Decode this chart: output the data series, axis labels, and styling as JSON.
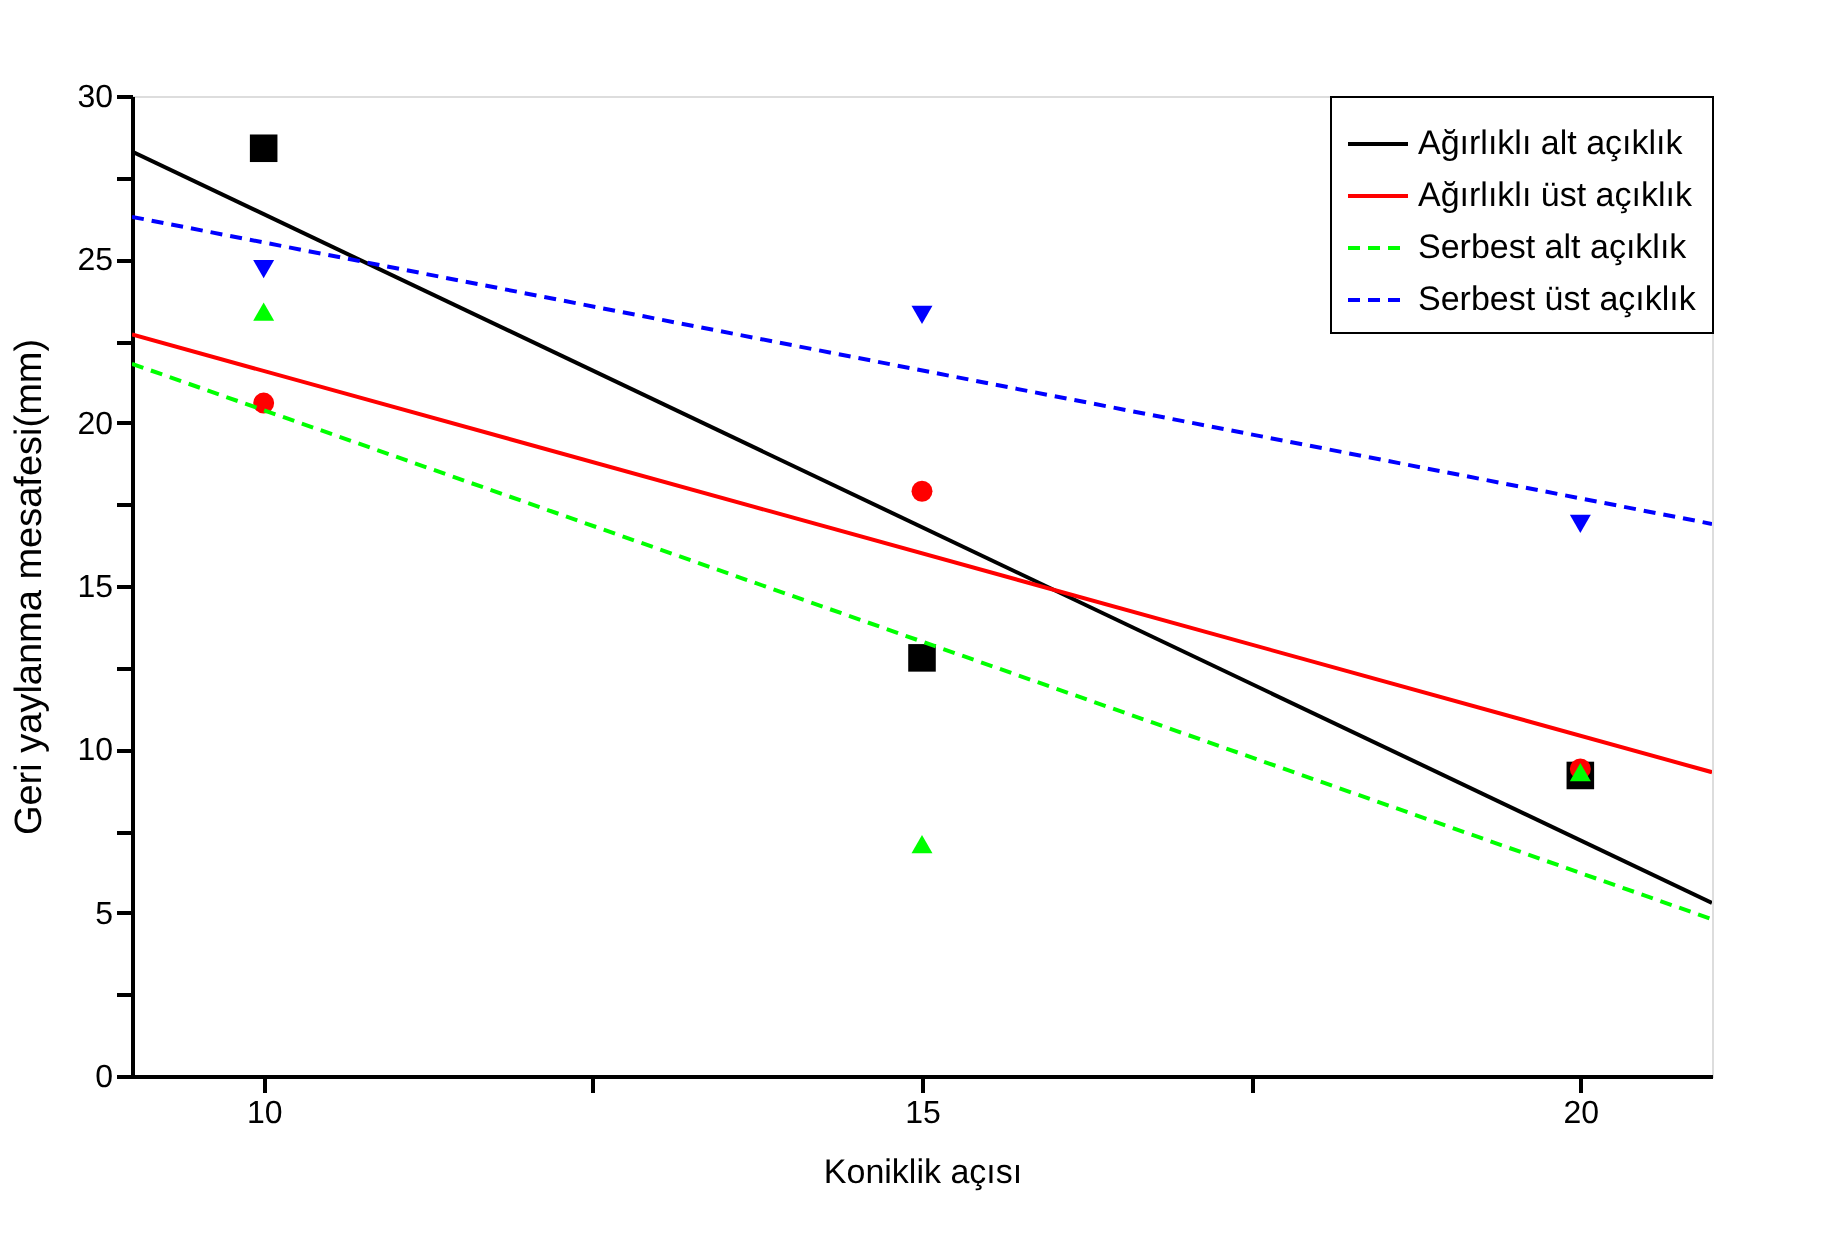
{
  "chart_data": {
    "type": "line",
    "xlabel": "Koniklik açısı",
    "ylabel": "Geri yaylanma mesafesi(mm)",
    "xlim": [
      9,
      21
    ],
    "xticks": [
      10,
      {
        "value": 12.5,
        "label": null
      },
      15,
      {
        "value": 17.5,
        "label": null
      },
      20
    ],
    "ylim": [
      0,
      30
    ],
    "yticks": [
      0,
      {
        "value": 2.5,
        "label": null
      },
      5,
      {
        "value": 7.5,
        "label": null
      },
      10,
      {
        "value": 12.5,
        "label": null
      },
      15,
      {
        "value": 17.5,
        "label": null
      },
      20,
      {
        "value": 22.5,
        "label": null
      },
      25,
      {
        "value": 27.5,
        "label": null
      },
      30
    ],
    "grid": false,
    "legend": "top right",
    "series": [
      {
        "type": "scatter",
        "color": "#000000",
        "marker": "square",
        "x": [
          10,
          15,
          20
        ],
        "values": [
          28.4,
          12.8,
          9.2
        ]
      },
      {
        "type": "scatter",
        "color": "#ff0000",
        "marker": "circle",
        "x": [
          10,
          15,
          20
        ],
        "values": [
          20.6,
          17.9,
          9.4
        ]
      },
      {
        "type": "scatter",
        "color": "#00ff00",
        "marker": "triangle",
        "x": [
          10,
          15,
          20
        ],
        "values": [
          23.4,
          7.1,
          9.3
        ]
      },
      {
        "type": "scatter",
        "color": "#0000ff",
        "marker": "triangle-down",
        "x": [
          10,
          15,
          20
        ],
        "values": [
          24.7,
          23.3,
          16.9
        ]
      },
      {
        "name": "Ağırlıklı alt açıklık",
        "color": "#000000",
        "line_style": "solid",
        "marker": "none",
        "x": [
          9,
          21
        ],
        "values": [
          28.3,
          5.3
        ]
      },
      {
        "name": "Ağırlıklı üst açıklık",
        "color": "#ff0000",
        "line_style": "solid",
        "marker": "none",
        "x": [
          9,
          21
        ],
        "values": [
          22.7,
          9.3
        ]
      },
      {
        "name": "Serbest alt açıklık",
        "color": "#00ff00",
        "line_style": "dashed",
        "marker": "none",
        "x": [
          9,
          21
        ],
        "values": [
          21.8,
          4.8
        ]
      },
      {
        "name": "Serbest üst açıklık",
        "color": "#0000ff",
        "line_style": "dashed",
        "marker": "none",
        "x": [
          9,
          21
        ],
        "values": [
          26.3,
          16.9
        ]
      }
    ]
  }
}
